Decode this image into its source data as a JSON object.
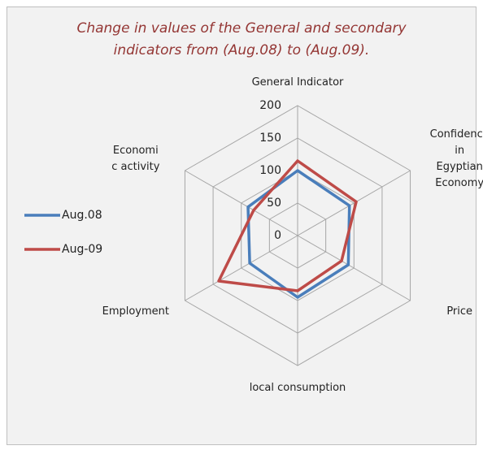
{
  "chart_data": {
    "type": "radar",
    "title": "Change in values of the General and secondary\nindicators  from (Aug.08) to (Aug.09).",
    "categories": [
      "General Indicator",
      "Confidence in\nEgyptian Economy",
      "Price",
      "local consumption",
      "Employment",
      "Economi\nc activity"
    ],
    "series": [
      {
        "name": "Aug.08",
        "color": "#4a7ebb",
        "values": [
          100,
          92,
          90,
          95,
          85,
          88
        ]
      },
      {
        "name": "Aug-09",
        "color": "#be4b48",
        "values": [
          115,
          104,
          78,
          85,
          140,
          78
        ]
      }
    ],
    "rlim": [
      0,
      200
    ],
    "rticks": [
      0,
      50,
      100,
      150,
      200
    ],
    "grid": true,
    "legend": "left"
  }
}
